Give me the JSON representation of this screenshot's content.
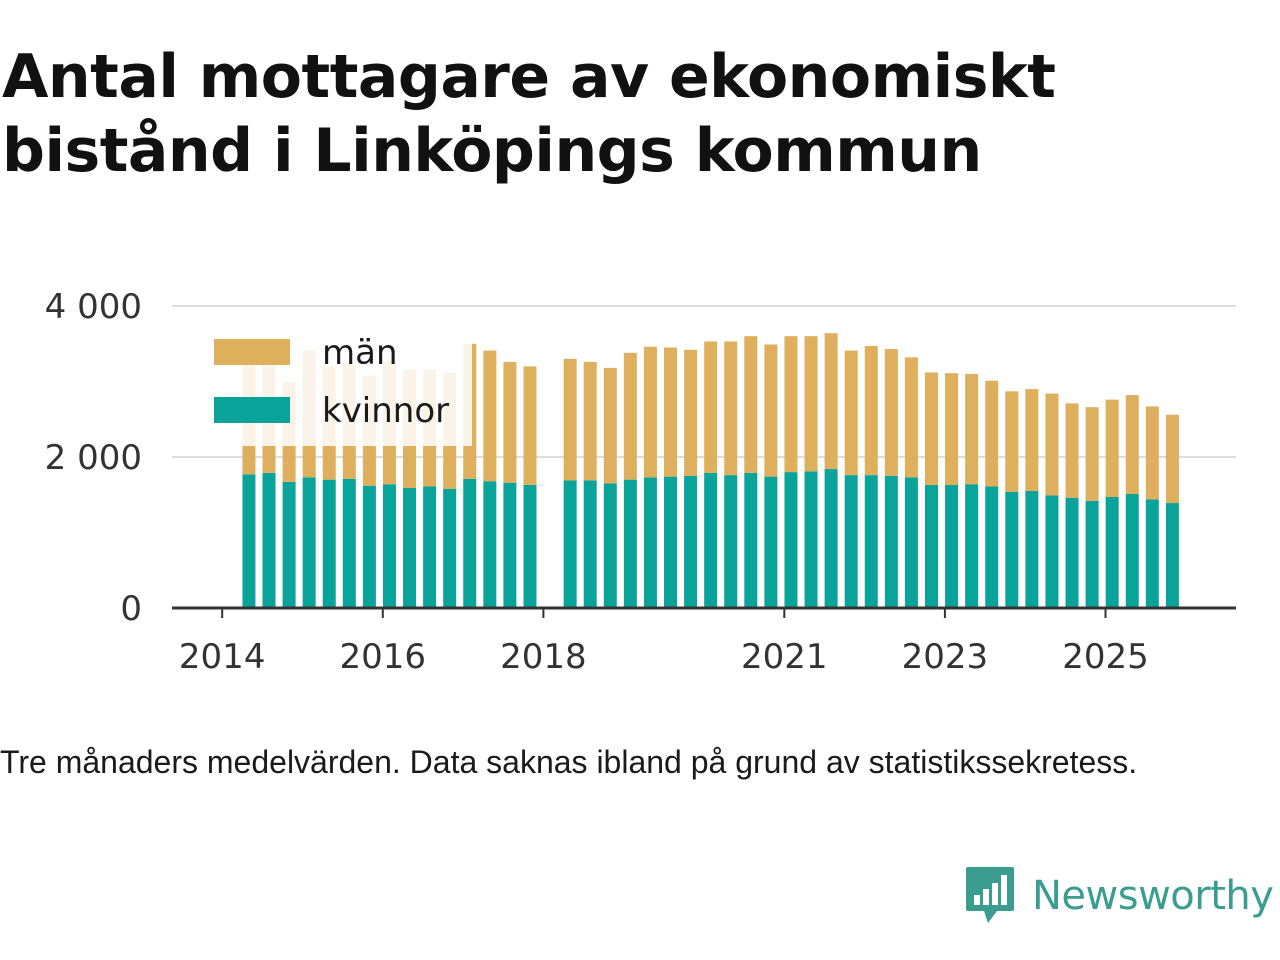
{
  "title": "Antal mottagare av ekonomiskt bistånd i Linköpings kommun",
  "note": "Tre månaders medelvärden. Data saknas ibland på grund av statistikssekretess.",
  "brand": {
    "name": "Newsworthy",
    "icon": "newsworthy-logo-icon",
    "color": "#3a9d8f"
  },
  "colors": {
    "men": "#deaf5c",
    "women": "#0aa39a",
    "grid": "#dddddd",
    "axis": "#333333"
  },
  "chart_data": {
    "type": "bar",
    "stacked": true,
    "title": "Antal mottagare av ekonomiskt bistånd i Linköpings kommun",
    "xlabel": "",
    "ylabel": "",
    "ylim": [
      0,
      4000
    ],
    "y_ticks": [
      {
        "value": 0,
        "label": "0"
      },
      {
        "value": 2000,
        "label": "2 000"
      },
      {
        "value": 4000,
        "label": "4 000"
      }
    ],
    "x_ticks": [
      {
        "value": 2014.0,
        "label": "2014"
      },
      {
        "value": 2016.0,
        "label": "2016"
      },
      {
        "value": 2018.0,
        "label": "2018"
      },
      {
        "value": 2021.0,
        "label": "2021"
      },
      {
        "value": 2023.0,
        "label": "2023"
      },
      {
        "value": 2025.0,
        "label": "2025"
      }
    ],
    "x_range": [
      2013.375,
      2026.625
    ],
    "legend_position": "top-left",
    "x": [
      2014.333,
      2014.583,
      2014.833,
      2015.083,
      2015.333,
      2015.583,
      2015.833,
      2016.083,
      2016.333,
      2016.583,
      2016.833,
      2017.083,
      2017.333,
      2017.583,
      2017.833,
      2018.333,
      2018.583,
      2018.833,
      2019.083,
      2019.333,
      2019.583,
      2019.833,
      2020.083,
      2020.333,
      2020.583,
      2020.833,
      2021.083,
      2021.333,
      2021.583,
      2021.833,
      2022.083,
      2022.333,
      2022.583,
      2022.833,
      2023.083,
      2023.333,
      2023.583,
      2023.833,
      2024.083,
      2024.333,
      2024.583,
      2024.833,
      2025.083,
      2025.333,
      2025.583,
      2025.833
    ],
    "series": [
      {
        "name": "kvinnor",
        "values": [
          1770,
          1790,
          1670,
          1730,
          1700,
          1710,
          1620,
          1640,
          1590,
          1610,
          1580,
          1710,
          1680,
          1660,
          1630,
          1690,
          1690,
          1650,
          1700,
          1730,
          1740,
          1750,
          1790,
          1760,
          1790,
          1740,
          1800,
          1810,
          1840,
          1760,
          1760,
          1750,
          1730,
          1630,
          1630,
          1640,
          1610,
          1540,
          1550,
          1490,
          1460,
          1420,
          1470,
          1510,
          1440,
          1390
        ]
      },
      {
        "name": "män",
        "values": [
          1450,
          1520,
          1320,
          1680,
          1500,
          1540,
          1460,
          1630,
          1570,
          1550,
          1540,
          1790,
          1730,
          1600,
          1570,
          1610,
          1570,
          1530,
          1680,
          1730,
          1710,
          1670,
          1740,
          1770,
          1810,
          1750,
          1800,
          1790,
          1800,
          1650,
          1710,
          1680,
          1590,
          1490,
          1480,
          1460,
          1400,
          1330,
          1350,
          1350,
          1250,
          1240,
          1290,
          1310,
          1230,
          1170
        ]
      }
    ]
  }
}
